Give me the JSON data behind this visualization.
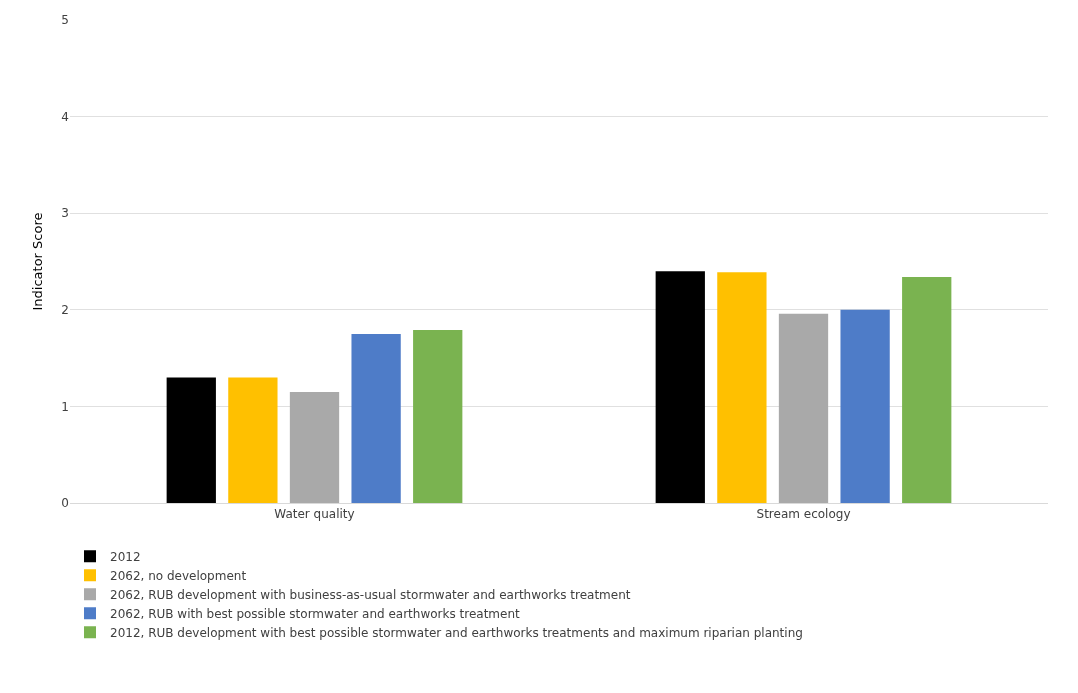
{
  "chart_data": {
    "type": "bar",
    "ylabel": "Indicator Score",
    "categories": [
      "Water quality",
      "Stream ecology"
    ],
    "series": [
      {
        "name": "2012",
        "color": "#000000",
        "values": [
          1.3,
          2.4
        ]
      },
      {
        "name": "2062, no development",
        "color": "#ffc000",
        "values": [
          1.3,
          2.39
        ]
      },
      {
        "name": "2062, RUB development with business-as-usual stormwater and earthworks treatment",
        "color": "#a9a9a9",
        "values": [
          1.15,
          1.96
        ]
      },
      {
        "name": "2062, RUB with best possible stormwater and earthworks treatment",
        "color": "#4e7cc8",
        "values": [
          1.75,
          2.0
        ]
      },
      {
        "name": "2012, RUB development with best possible stormwater and earthworks treatments and maximum riparian planting",
        "color": "#7ab350",
        "values": [
          1.79,
          2.34
        ]
      }
    ],
    "ylim": [
      0,
      5
    ],
    "yticks": [
      0,
      1,
      2,
      3,
      4,
      5
    ],
    "grid": "y",
    "legend": "bottom"
  }
}
